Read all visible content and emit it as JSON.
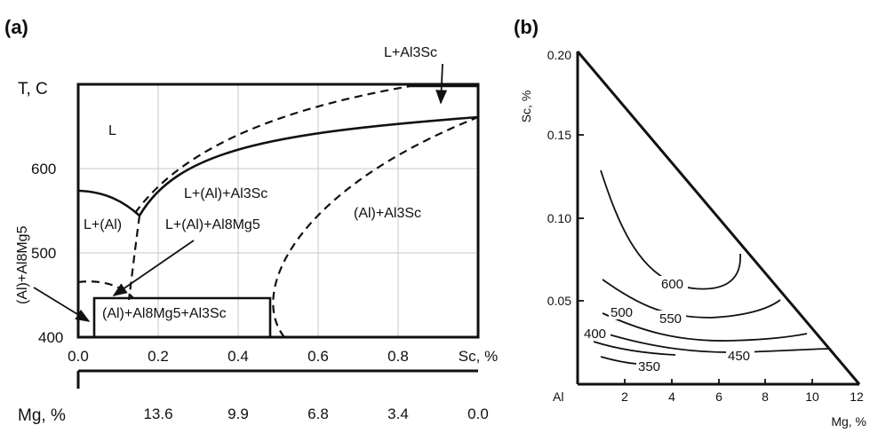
{
  "panel_a": {
    "panel_label": "(a)",
    "y_axis_label": "T, C",
    "x_axis_label": "Sc, %",
    "mg_axis_label": "Mg, %",
    "y_ticks": [
      "600",
      "500",
      "400"
    ],
    "x_ticks": [
      "0.0",
      "0.2",
      "0.4",
      "0.6",
      "0.8"
    ],
    "mg_ticks": [
      "13.6",
      "9.9",
      "6.8",
      "3.4",
      "0.0"
    ],
    "regions": {
      "liquid": "L",
      "l_al": "L+(Al)",
      "l_al_al3sc": "L+(Al)+Al3Sc",
      "l_al_al8mg5": "L+(Al)+Al8Mg5",
      "al_al3sc": "(Al)+Al3Sc",
      "al_al8mg5_al3sc": "(Al)+Al8Mg5+Al3Sc",
      "al_al8mg5": "(Al)+Al8Mg5",
      "l_al3sc": "L+Al3Sc"
    }
  },
  "panel_b": {
    "panel_label": "(b)",
    "y_axis_label": "Sc, %",
    "x_axis_label": "Mg, %",
    "origin_label": "Al",
    "y_ticks": [
      "0.20",
      "0.15",
      "0.10",
      "0.05"
    ],
    "x_ticks": [
      "2",
      "4",
      "6",
      "8",
      "10",
      "12"
    ],
    "isotherms": [
      "600",
      "550",
      "500",
      "450",
      "400",
      "350"
    ]
  }
}
